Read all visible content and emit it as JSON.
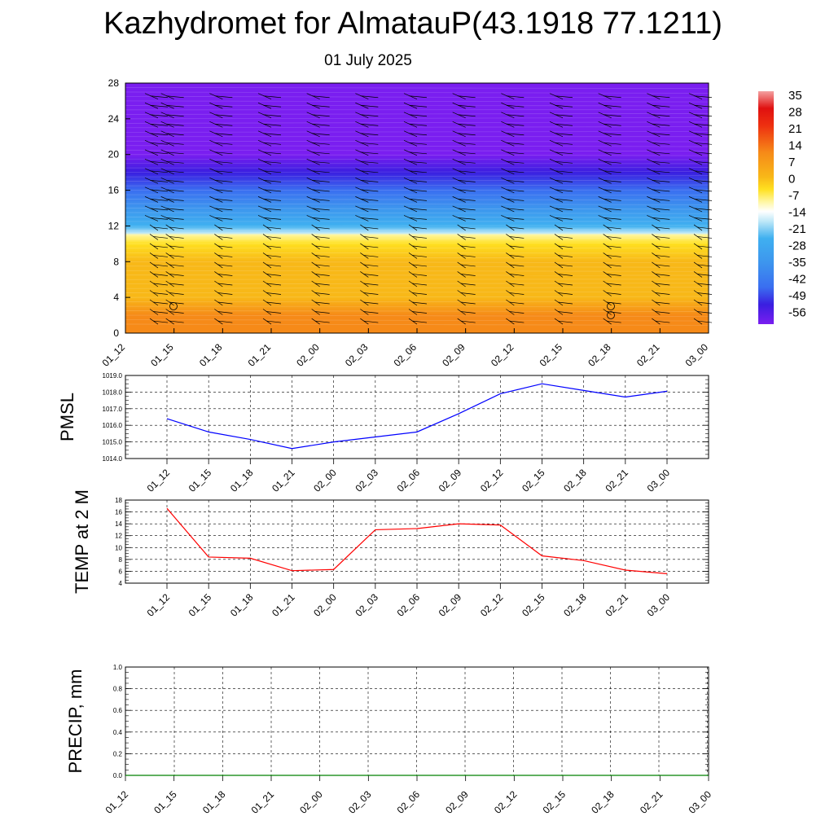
{
  "title": "Kazhydromet for AlmatauP(43.1918 77.1211)",
  "subtitle": "01 July 2025",
  "time_labels": [
    "01_12",
    "01_15",
    "01_18",
    "01_21",
    "02_00",
    "02_03",
    "02_06",
    "02_09",
    "02_12",
    "02_15",
    "02_18",
    "02_21",
    "03_00"
  ],
  "chart_data": [
    {
      "type": "heatmap",
      "name": "vertical cross-section",
      "x": [
        "01_12",
        "01_15",
        "01_18",
        "01_21",
        "02_00",
        "02_03",
        "02_06",
        "02_09",
        "02_12",
        "02_15",
        "02_18",
        "02_21",
        "03_00"
      ],
      "ylim": [
        0,
        28
      ],
      "yticks": [
        0,
        4,
        8,
        12,
        16,
        20,
        24,
        28
      ],
      "colorbar_labels": [
        "35",
        "28",
        "21",
        "14",
        "7",
        "0",
        "-7",
        "-14",
        "-21",
        "-28",
        "-35",
        "-42",
        "-49",
        "-56"
      ],
      "color_stops": [
        {
          "v": -60,
          "c": "#7a1ef0"
        },
        {
          "v": -52,
          "c": "#3a1ee0"
        },
        {
          "v": -45,
          "c": "#3a6ef0"
        },
        {
          "v": -35,
          "c": "#3d95ee"
        },
        {
          "v": -25,
          "c": "#3fb0f0"
        },
        {
          "v": -18,
          "c": "#bfe8f8"
        },
        {
          "v": -14,
          "c": "#ffffff"
        },
        {
          "v": -10,
          "c": "#fff6a0"
        },
        {
          "v": -5,
          "c": "#ffe020"
        },
        {
          "v": 0,
          "c": "#f8b818"
        },
        {
          "v": 10,
          "c": "#f68a18"
        },
        {
          "v": 21,
          "c": "#ee3010"
        },
        {
          "v": 28,
          "c": "#e01010"
        },
        {
          "v": 35,
          "c": "#f4a0a0"
        }
      ],
      "temperature_profile": [
        {
          "h": 0,
          "t": 16
        },
        {
          "h": 2,
          "t": 12
        },
        {
          "h": 4,
          "t": 9
        },
        {
          "h": 6,
          "t": 5
        },
        {
          "h": 8,
          "t": 1
        },
        {
          "h": 10,
          "t": -3
        },
        {
          "h": 11,
          "t": -5
        },
        {
          "h": 11.2,
          "t": -14
        },
        {
          "h": 12,
          "t": -20
        },
        {
          "h": 14,
          "t": -28
        },
        {
          "h": 16,
          "t": -38
        },
        {
          "h": 18,
          "t": -47
        },
        {
          "h": 20,
          "t": -55
        },
        {
          "h": 21,
          "t": -56
        },
        {
          "h": 23,
          "t": -59
        },
        {
          "h": 28,
          "t": -60
        }
      ]
    },
    {
      "type": "line",
      "ylabel": "PMSL",
      "x": [
        "01_12",
        "01_15",
        "01_18",
        "01_21",
        "02_00",
        "02_03",
        "02_06",
        "02_09",
        "02_12",
        "02_15",
        "02_18",
        "02_21",
        "03_00"
      ],
      "ylim": [
        1014.0,
        1019.0
      ],
      "yticks": [
        "1014.0",
        "1015.0",
        "1016.0",
        "1017.0",
        "1018.0",
        "1019.0"
      ],
      "series": [
        {
          "color": "#0000ff",
          "values": [
            1016.4,
            1015.6,
            1015.15,
            1014.6,
            1015.0,
            1015.3,
            1015.6,
            1016.7,
            1017.9,
            1018.5,
            1018.1,
            1017.7,
            1018.05
          ]
        }
      ]
    },
    {
      "type": "line",
      "ylabel": "TEMP at 2 M",
      "x": [
        "01_12",
        "01_15",
        "01_18",
        "01_21",
        "02_00",
        "02_03",
        "02_06",
        "02_09",
        "02_12",
        "02_15",
        "02_18",
        "02_21",
        "03_00"
      ],
      "ylim": [
        4,
        18
      ],
      "yticks": [
        "4",
        "6",
        "8",
        "10",
        "12",
        "14",
        "16",
        "18"
      ],
      "series": [
        {
          "color": "#ff0000",
          "values": [
            16.6,
            8.4,
            8.2,
            6.1,
            6.3,
            13.0,
            13.2,
            14.0,
            13.8,
            8.6,
            7.8,
            6.2,
            5.6
          ]
        }
      ]
    },
    {
      "type": "line",
      "ylabel": "PRECIP, mm",
      "x": [
        "01_12",
        "01_15",
        "01_18",
        "01_21",
        "02_00",
        "02_03",
        "02_06",
        "02_09",
        "02_12",
        "02_15",
        "02_18",
        "02_21",
        "03_00"
      ],
      "ylim": [
        0.0,
        1.0
      ],
      "yticks": [
        "0.0",
        "0.2",
        "0.4",
        "0.6",
        "0.8",
        "1.0"
      ],
      "series": [
        {
          "color": "#008000",
          "values": [
            0,
            0,
            0,
            0,
            0,
            0,
            0,
            0,
            0,
            0,
            0,
            0,
            0
          ]
        }
      ]
    }
  ]
}
